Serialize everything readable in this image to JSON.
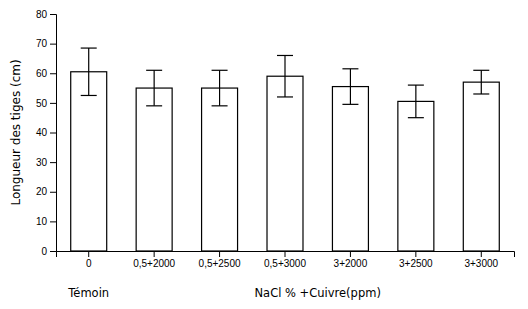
{
  "chart_data": {
    "type": "bar",
    "categories": [
      "0",
      "0,5+2000",
      "0,5+2500",
      "0,5+3000",
      "3+2000",
      "3+2500",
      "3+3000"
    ],
    "values": [
      60.5,
      55.0,
      55.0,
      59.0,
      55.5,
      50.5,
      57.0
    ],
    "errors": [
      8.0,
      6.0,
      6.0,
      7.0,
      6.0,
      5.5,
      4.0
    ],
    "color": "#ffffff",
    "ylabel": "Longueur des tiges (cm)",
    "annotations": [
      "Témoin",
      "NaCl % +Cuivre(ppm)"
    ],
    "ylim": [
      0,
      80
    ],
    "yticks": [
      0,
      10,
      20,
      30,
      40,
      50,
      60,
      70,
      80
    ],
    "grid": false
  }
}
